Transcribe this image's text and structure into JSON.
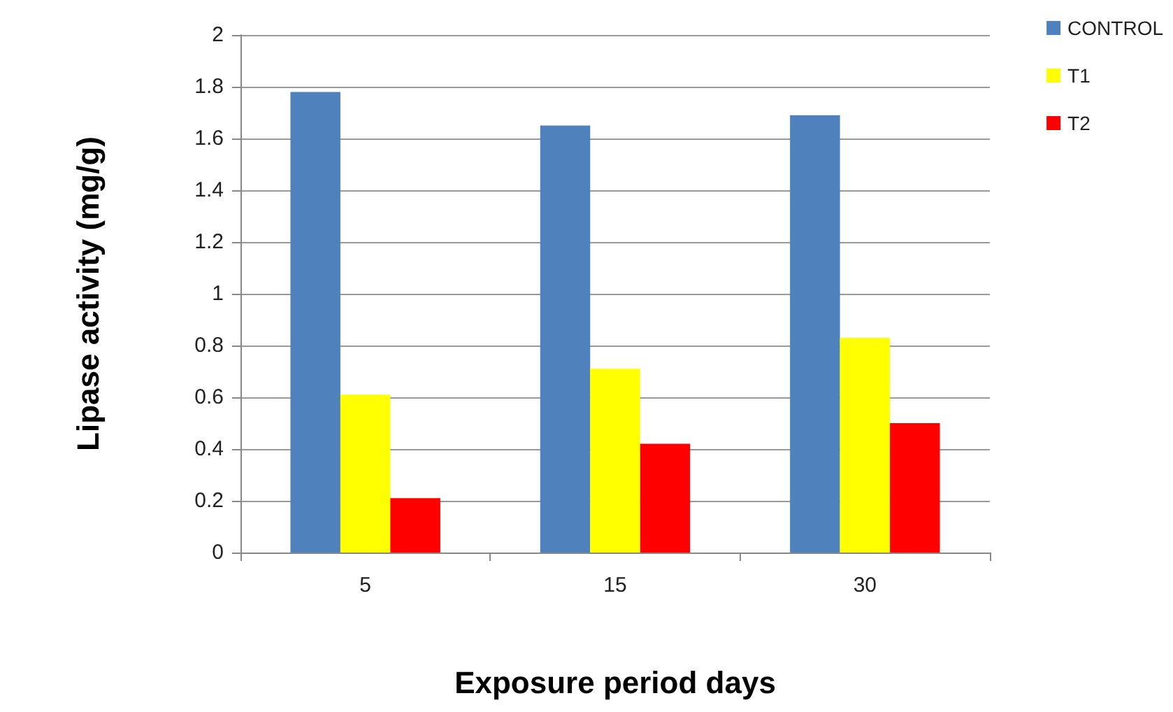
{
  "chart_data": {
    "type": "bar",
    "xlabel": "Exposure period days",
    "ylabel": "Lipase activity (mg/g)",
    "categories": [
      "5",
      "15",
      "30"
    ],
    "series": [
      {
        "name": "CONTROL",
        "color": "#4f81bd",
        "values": [
          1.78,
          1.65,
          1.69
        ]
      },
      {
        "name": "T1",
        "color": "#ffff00",
        "values": [
          0.61,
          0.71,
          0.83
        ]
      },
      {
        "name": "T2",
        "color": "#ff0000",
        "values": [
          0.21,
          0.42,
          0.5
        ]
      }
    ],
    "ylim": [
      0,
      2
    ],
    "yticks": [
      0,
      0.2,
      0.4,
      0.6,
      0.8,
      1,
      1.2,
      1.4,
      1.6,
      1.8,
      2
    ],
    "grid": "y",
    "legend": "top right"
  }
}
